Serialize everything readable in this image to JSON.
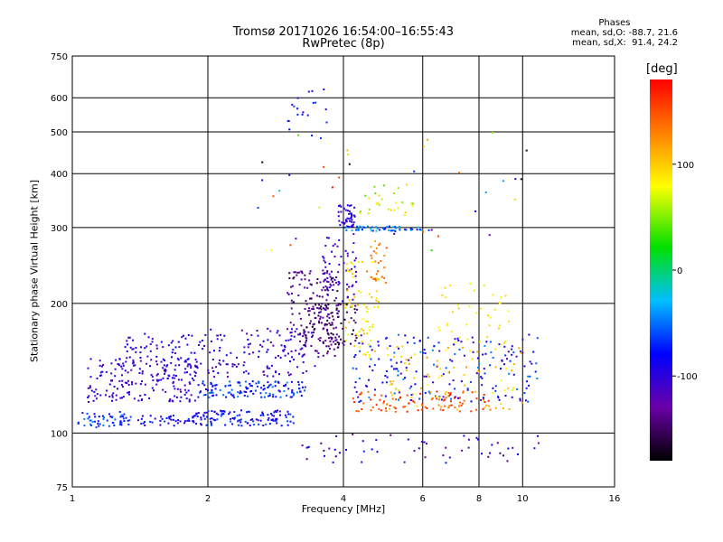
{
  "header": {
    "title_line1": "Tromsø 20171026 16:54:00–16:55:43",
    "title_line2": "RwPretec (8p)"
  },
  "phases": {
    "heading": "Phases",
    "o_mode": "mean, sd,O: -88.7, 21.6",
    "x_mode": "mean, sd,X:  91.4, 24.2"
  },
  "colorbar": {
    "unit": "[deg]",
    "range": [
      -180,
      180
    ],
    "ticks": [
      {
        "value": 100,
        "label": "100"
      },
      {
        "value": 0,
        "label": "0"
      },
      {
        "value": -100,
        "label": "-100"
      }
    ]
  },
  "chart_data": {
    "type": "scatter",
    "xlabel": "Frequency [MHz]",
    "ylabel": "Stationary phase Virtual Height [km]",
    "xscale": "log",
    "yscale": "log",
    "xlim": [
      1,
      16
    ],
    "ylim": [
      75,
      750
    ],
    "xticks": [
      {
        "value": 1,
        "label": "1"
      },
      {
        "value": 2,
        "label": "2"
      },
      {
        "value": 4,
        "label": "4"
      },
      {
        "value": 6,
        "label": "6"
      },
      {
        "value": 8,
        "label": "8"
      },
      {
        "value": 10,
        "label": "10"
      },
      {
        "value": 16,
        "label": "16"
      }
    ],
    "yticks": [
      {
        "value": 75,
        "label": "75"
      },
      {
        "value": 100,
        "label": "100"
      },
      {
        "value": 200,
        "label": "200"
      },
      {
        "value": 300,
        "label": "300"
      },
      {
        "value": 400,
        "label": "400"
      },
      {
        "value": 500,
        "label": "500"
      },
      {
        "value": 600,
        "label": "600"
      },
      {
        "value": 750,
        "label": "750"
      }
    ],
    "grid": true,
    "color_by": "phase_deg",
    "clusters": [
      {
        "x": [
          1.03,
          1.35
        ],
        "y": [
          103,
          112
        ],
        "phase": [
          -100,
          -40
        ],
        "n": 55
      },
      {
        "x": [
          1.08,
          1.9
        ],
        "y": [
          118,
          150
        ],
        "phase": [
          -125,
          -85
        ],
        "n": 190
      },
      {
        "x": [
          1.3,
          2.0
        ],
        "y": [
          143,
          170
        ],
        "phase": [
          -115,
          -80
        ],
        "n": 70
      },
      {
        "x": [
          1.4,
          1.9
        ],
        "y": [
          104,
          110
        ],
        "phase": [
          -110,
          -60
        ],
        "n": 40
      },
      {
        "x": [
          1.85,
          3.1
        ],
        "y": [
          104,
          113
        ],
        "phase": [
          -110,
          -55
        ],
        "n": 120
      },
      {
        "x": [
          1.9,
          3.3
        ],
        "y": [
          121,
          132
        ],
        "phase": [
          -100,
          -40
        ],
        "n": 130
      },
      {
        "x": [
          2.0,
          3.5
        ],
        "y": [
          135,
          175
        ],
        "phase": [
          -130,
          -80
        ],
        "n": 130
      },
      {
        "x": [
          3.0,
          3.9
        ],
        "y": [
          150,
          240
        ],
        "phase": [
          -160,
          -110
        ],
        "n": 150
      },
      {
        "x": [
          3.3,
          4.3
        ],
        "y": [
          160,
          200
        ],
        "phase": [
          -170,
          -130
        ],
        "n": 90
      },
      {
        "x": [
          3.9,
          4.25
        ],
        "y": [
          300,
          340
        ],
        "phase": [
          -110,
          -90
        ],
        "n": 45
      },
      {
        "x": [
          4.0,
          6.2
        ],
        "y": [
          294,
          302
        ],
        "phase": [
          -80,
          -20
        ],
        "n": 55
      },
      {
        "x": [
          3.6,
          4.3
        ],
        "y": [
          200,
          290
        ],
        "phase": [
          -130,
          -90
        ],
        "n": 60
      },
      {
        "x": [
          4.0,
          4.8
        ],
        "y": [
          150,
          250
        ],
        "phase": [
          70,
          110
        ],
        "n": 70
      },
      {
        "x": [
          4.5,
          5.0
        ],
        "y": [
          220,
          280
        ],
        "phase": [
          110,
          150
        ],
        "n": 25
      },
      {
        "x": [
          4.3,
          5.8
        ],
        "y": [
          320,
          380
        ],
        "phase": [
          40,
          100
        ],
        "n": 30
      },
      {
        "x": [
          4.2,
          8.5
        ],
        "y": [
          112,
          125
        ],
        "phase": [
          130,
          175
        ],
        "n": 90
      },
      {
        "x": [
          4.2,
          10.8
        ],
        "y": [
          118,
          170
        ],
        "phase": [
          -120,
          -40
        ],
        "n": 190
      },
      {
        "x": [
          5.0,
          10.0
        ],
        "y": [
          112,
          160
        ],
        "phase": [
          80,
          120
        ],
        "n": 80
      },
      {
        "x": [
          6.5,
          9.5
        ],
        "y": [
          160,
          225
        ],
        "phase": [
          70,
          100
        ],
        "n": 40
      },
      {
        "x": [
          3.2,
          11.0
        ],
        "y": [
          85,
          100
        ],
        "phase": [
          -150,
          -70
        ],
        "n": 55
      },
      {
        "x": [
          3.0,
          3.7
        ],
        "y": [
          480,
          640
        ],
        "phase": [
          -110,
          -60
        ],
        "n": 20
      },
      {
        "x": [
          2.5,
          10.5
        ],
        "y": [
          250,
          520
        ],
        "phase": [
          -180,
          180
        ],
        "n": 35
      }
    ]
  }
}
